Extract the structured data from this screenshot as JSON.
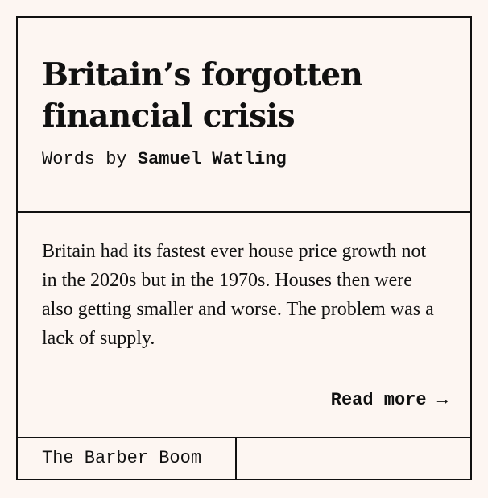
{
  "article": {
    "title": "Britain’s forgotten financial crisis",
    "byline_prefix": "Words by ",
    "author": "Samuel Watling",
    "excerpt": "Britain had its fastest ever house price growth not in the 2020s but in the 1970s. Houses then were also getting smaller and worse. The problem was a lack of supply.",
    "read_more_label": "Read more →",
    "series_label": "The Barber Boom"
  },
  "colors": {
    "background": "#fdf6f2",
    "ink": "#111111"
  }
}
